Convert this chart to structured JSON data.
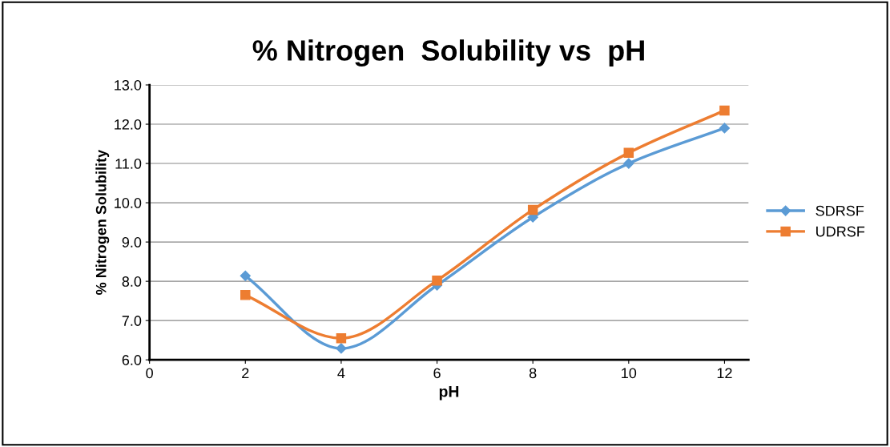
{
  "chart_data": {
    "type": "line",
    "title": "% Nitrogen  Solubility vs  pH",
    "xlabel": "pH",
    "ylabel": "% Nitrogen Solubility",
    "x": [
      2,
      4,
      6,
      8,
      10,
      12
    ],
    "series": [
      {
        "name": "SDRSF",
        "color": "#5b9bd5",
        "marker": "diamond",
        "values": [
          8.14,
          6.29,
          7.9,
          9.63,
          11.0,
          11.9
        ]
      },
      {
        "name": "UDRSF",
        "color": "#ed7d31",
        "marker": "square",
        "values": [
          7.65,
          6.55,
          8.02,
          9.82,
          11.27,
          12.35
        ]
      }
    ],
    "xlim": [
      0,
      12.5
    ],
    "xticks": [
      0,
      2,
      4,
      6,
      8,
      10,
      12
    ],
    "ylim": [
      6.0,
      13.0
    ],
    "yticks": [
      {
        "value": 6,
        "label": "6.0"
      },
      {
        "value": 7,
        "label": "7.0"
      },
      {
        "value": 8,
        "label": "8.0"
      },
      {
        "value": 9,
        "label": "9.0"
      },
      {
        "value": 10,
        "label": "10.0"
      },
      {
        "value": 11,
        "label": "11.0"
      },
      {
        "value": 12,
        "label": "12.0"
      },
      {
        "value": 13,
        "label": "13.0"
      }
    ],
    "grid": "y",
    "legend": "right",
    "line_style": "solid"
  }
}
